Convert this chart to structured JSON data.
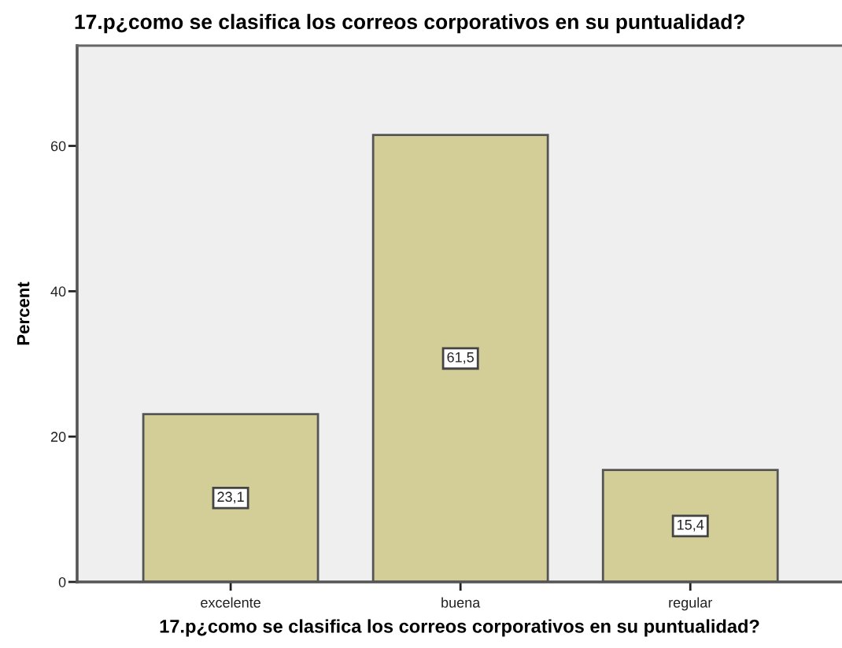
{
  "chart_data": {
    "type": "bar",
    "title": "17.p¿como se clasifica los correos corporativos en su puntualidad?",
    "xlabel": "17.p¿como se clasifica los correos corporativos en su puntualidad?",
    "ylabel": "Percent",
    "categories": [
      "excelente",
      "buena",
      "regular"
    ],
    "values": [
      23.1,
      61.5,
      15.4
    ],
    "value_labels": [
      "23,1",
      "61,5",
      "15,4"
    ],
    "color": "#d3ce98",
    "ylim": [
      0,
      73.8
    ],
    "yticks": [
      0,
      20,
      40,
      60
    ],
    "grid": false,
    "legend": false
  }
}
